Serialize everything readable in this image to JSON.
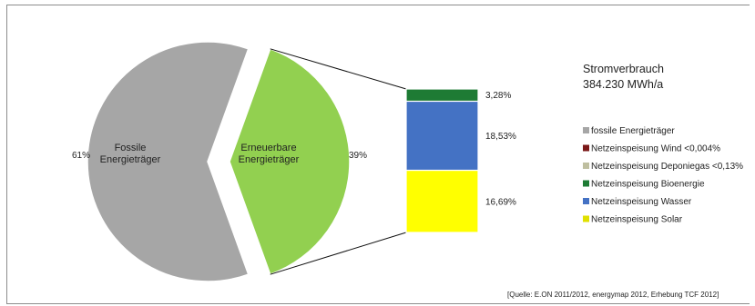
{
  "chart_data": {
    "type": "pie",
    "title": "Stromverbrauch",
    "subtitle": "384.230 MWh/a",
    "source": "[Quelle: E.ON 2011/2012, energymap 2012, Erhebung TCF 2012]",
    "pie": {
      "slices": [
        {
          "name": "Fossile Energieträger",
          "label_lines": [
            "Fossile",
            "Energieträger"
          ],
          "value": 61,
          "value_label": "61%",
          "color": "#a6a6a6"
        },
        {
          "name": "Erneuerbare Energieträger",
          "label_lines": [
            "Erneuerbare",
            "Energieträger"
          ],
          "value": 39,
          "value_label": "39%",
          "color": "#92d050"
        }
      ]
    },
    "bar_of_pie": {
      "segments": [
        {
          "name": "Netzeinspeisung Solar",
          "value": 16.69,
          "value_label": "16,69%",
          "color": "#ffff00"
        },
        {
          "name": "Netzeinspeisung Wasser",
          "value": 18.53,
          "value_label": "18,53%",
          "color": "#4472c4"
        },
        {
          "name": "Netzeinspeisung Bioenergie",
          "value": 3.28,
          "value_label": "3,28%",
          "color": "#1e7b34"
        }
      ]
    },
    "legend": [
      {
        "label": "fossile Energieträger",
        "color": "#a6a6a6"
      },
      {
        "label": "Netzeinspeisung Wind <0,004%",
        "color": "#7b1818"
      },
      {
        "label": "Netzeinspeisung Deponiegas <0,13%",
        "color": "#bfbfa0"
      },
      {
        "label": "Netzeinspeisung Bioenergie",
        "color": "#1e7b34"
      },
      {
        "label": "Netzeinspeisung Wasser",
        "color": "#4472c4"
      },
      {
        "label": "Netzeinspeisung Solar",
        "color": "#e0e000"
      }
    ],
    "legend_position": "right"
  }
}
